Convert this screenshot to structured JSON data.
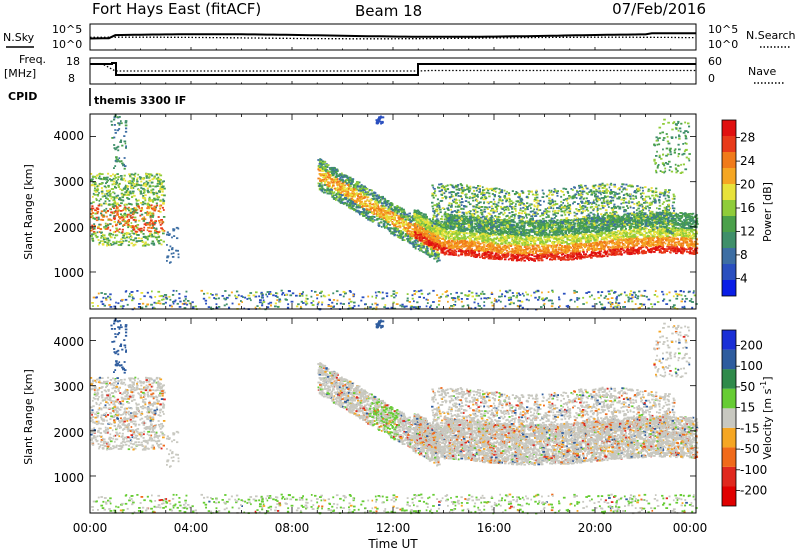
{
  "header": {
    "station": "Fort Hays East (fitACF)",
    "beam": "Beam 18",
    "date": "07/Feb/2016"
  },
  "colors": {
    "velocity_pos": "#1f3fbf",
    "velocity_neg": "#e0281e",
    "ground_scatter": "#c8c8c0",
    "axis": "#000000"
  },
  "chart_data": [
    {
      "type": "line",
      "title": "",
      "left_label": "N.Sky",
      "right_label": "N.Search",
      "yticks_left": [
        "10^5",
        "10^0"
      ],
      "yticks_right": [
        "10^5",
        "10^0"
      ],
      "series": [
        {
          "name": "N.Sky",
          "style": "solid"
        },
        {
          "name": "N.Search",
          "style": "dotted"
        }
      ]
    },
    {
      "type": "line",
      "left_label_top": "Freq.",
      "left_label_bottom": "[MHz]",
      "right_label": "Nave",
      "yticks_left": [
        "18",
        "8"
      ],
      "yticks_right": [
        "60",
        "0"
      ],
      "series": [
        {
          "name": "Freq",
          "style": "solid"
        },
        {
          "name": "Nave",
          "style": "dotted"
        }
      ]
    },
    {
      "type": "table",
      "label": "CPID",
      "value": "themis 3300 IF"
    },
    {
      "type": "heatmap",
      "ylabel": "Slant Range [km]",
      "yticks": [
        "4000",
        "3000",
        "2000",
        "1000"
      ],
      "ylim": [
        180,
        4500
      ],
      "colorbar": {
        "label": "Power [dB]",
        "ticks": [
          "28",
          "24",
          "20",
          "16",
          "12",
          "8",
          "4"
        ],
        "range": [
          0,
          30
        ],
        "colors": [
          "#0a1ee6",
          "#2a4fbf",
          "#3d6ea3",
          "#3f8f6a",
          "#4aa04a",
          "#8fcc3a",
          "#e8e23a",
          "#f5a623",
          "#f07a1a",
          "#e83a1a",
          "#e01010"
        ]
      }
    },
    {
      "type": "heatmap",
      "ylabel": "Slant Range [km]",
      "yticks": [
        "4000",
        "3000",
        "2000",
        "1000"
      ],
      "ylim": [
        180,
        4500
      ],
      "colorbar": {
        "label": "Velocity [m s",
        "label_sup": "-1",
        "label_end": "]",
        "ticks": [
          "200",
          "100",
          "50",
          "15",
          "-15",
          "-50",
          "-100",
          "-200"
        ],
        "colors": [
          "#1a2fd6",
          "#2e5c9e",
          "#2f8a4a",
          "#66cc33",
          "#c8c8c0",
          "#f5a623",
          "#f06a1a",
          "#e0281e",
          "#e00000"
        ]
      }
    }
  ],
  "xaxis": {
    "ticks": [
      "00:00",
      "04:00",
      "08:00",
      "12:00",
      "16:00",
      "20:00",
      "00:00"
    ],
    "label": "Time UT"
  }
}
